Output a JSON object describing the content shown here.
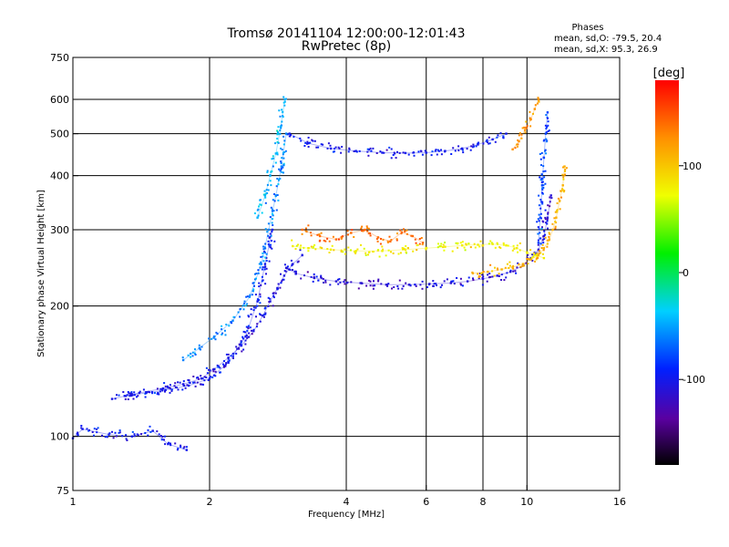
{
  "chart_data": {
    "type": "scatter",
    "title": "Tromsø 20141104 12:00:00-12:01:43",
    "subtitle": "RwPretec (8p)",
    "xlabel": "Frequency [MHz]",
    "ylabel": "Stationary phase Virtual Height [km]",
    "x_scale": "log",
    "y_scale": "log",
    "xlim": [
      1,
      16
    ],
    "ylim": [
      75,
      750
    ],
    "x_ticks": [
      1,
      2,
      4,
      6,
      8,
      10,
      16
    ],
    "x_tick_labels": [
      "1",
      "2",
      "4",
      "6",
      "8",
      "10",
      "16"
    ],
    "y_ticks": [
      75,
      100,
      200,
      300,
      400,
      500,
      600,
      750
    ],
    "y_tick_labels": [
      "75",
      "100",
      "200",
      "300",
      "400",
      "500",
      "600",
      "750"
    ],
    "grid": true,
    "stats": {
      "heading": "Phases",
      "line_o": "mean, sd,O: -79.5, 20.4",
      "line_x": "mean, sd,X:  95.3, 26.9"
    },
    "colorbar": {
      "label": "[deg]",
      "min": -180,
      "max": 180,
      "ticks": [
        100,
        0,
        -100
      ],
      "tick_labels": [
        "100",
        "0",
        "-100"
      ],
      "colormap": "rainbow (black-purple-blue-cyan-green-yellow-red)"
    },
    "traces": [
      {
        "x": [
          1.22,
          1.4,
          1.58,
          1.75,
          1.92,
          2.05,
          2.2,
          2.35,
          2.5,
          2.62,
          2.72,
          2.82,
          2.92,
          3.05,
          3.2
        ],
        "y": [
          122,
          126,
          129,
          132,
          136,
          143,
          152,
          162,
          175,
          190,
          205,
          220,
          235,
          250,
          262
        ],
        "phase": -105
      },
      {
        "x": [
          1.3,
          1.45,
          1.6,
          1.8,
          2.0,
          2.2,
          2.4,
          2.55,
          2.65,
          2.75
        ],
        "y": [
          124,
          126,
          128,
          131,
          136,
          148,
          170,
          205,
          250,
          300
        ],
        "phase": -100
      },
      {
        "x": [
          1.75,
          1.9,
          2.05,
          2.25,
          2.45,
          2.6,
          2.7,
          2.8,
          2.88,
          2.95
        ],
        "y": [
          150,
          160,
          170,
          185,
          210,
          250,
          300,
          360,
          420,
          500
        ],
        "phase": -60
      },
      {
        "x": [
          2.55,
          2.65,
          2.72,
          2.8,
          2.87,
          2.93
        ],
        "y": [
          320,
          360,
          400,
          450,
          520,
          600
        ],
        "phase": -45
      },
      {
        "x": [
          1.0,
          1.05,
          1.2,
          1.35,
          1.5,
          1.62,
          1.78
        ],
        "y": [
          99,
          104,
          101,
          100,
          103,
          96,
          93
        ],
        "phase": -100
      },
      {
        "x": [
          2.95,
          3.1,
          3.4,
          3.8,
          4.3,
          4.9,
          5.5,
          6.1,
          6.8,
          7.4,
          8.0,
          8.6,
          9.2,
          9.8,
          10.2,
          10.6,
          10.9,
          11.1,
          11.3
        ],
        "y": [
          245,
          238,
          232,
          228,
          226,
          224,
          224,
          225,
          226,
          228,
          231,
          235,
          240,
          248,
          258,
          270,
          290,
          320,
          360
        ],
        "phase": -110
      },
      {
        "x": [
          3.0,
          3.3,
          3.7,
          4.2,
          4.8,
          5.4,
          6.0,
          6.6,
          7.2,
          7.8,
          8.4,
          9.0
        ],
        "y": [
          500,
          475,
          462,
          456,
          452,
          451,
          452,
          456,
          462,
          472,
          485,
          500
        ],
        "phase": -100
      },
      {
        "x": [
          3.05,
          3.3,
          3.7,
          4.2,
          4.8,
          5.4,
          6.0,
          6.6,
          7.2,
          7.8,
          8.4,
          9.0,
          9.5,
          10.0,
          10.5,
          10.9
        ],
        "y": [
          275,
          272,
          270,
          268,
          268,
          270,
          272,
          274,
          276,
          277,
          278,
          276,
          272,
          266,
          262,
          258
        ],
        "phase": 80
      },
      {
        "x": [
          7.6,
          8.2,
          8.8,
          9.3,
          9.8,
          10.2,
          10.6,
          10.9,
          11.2,
          11.4,
          11.6,
          11.8,
          12.0,
          12.1
        ],
        "y": [
          238,
          240,
          243,
          246,
          250,
          256,
          262,
          272,
          285,
          300,
          320,
          350,
          380,
          420
        ],
        "phase": 110
      },
      {
        "x": [
          9.3,
          9.6,
          9.9,
          10.2,
          10.4,
          10.6
        ],
        "y": [
          460,
          480,
          510,
          540,
          570,
          600
        ],
        "phase": 125
      },
      {
        "x": [
          3.2,
          3.5,
          3.8,
          4.1,
          4.4,
          4.7,
          5.0,
          5.3,
          5.6,
          5.9
        ],
        "y": [
          300,
          290,
          285,
          295,
          300,
          288,
          282,
          296,
          290,
          280
        ],
        "phase": 140
      },
      {
        "x": [
          10.6,
          10.7,
          10.8,
          10.9,
          11.0,
          11.1
        ],
        "y": [
          280,
          320,
          380,
          440,
          500,
          560
        ],
        "phase": -80
      }
    ]
  }
}
